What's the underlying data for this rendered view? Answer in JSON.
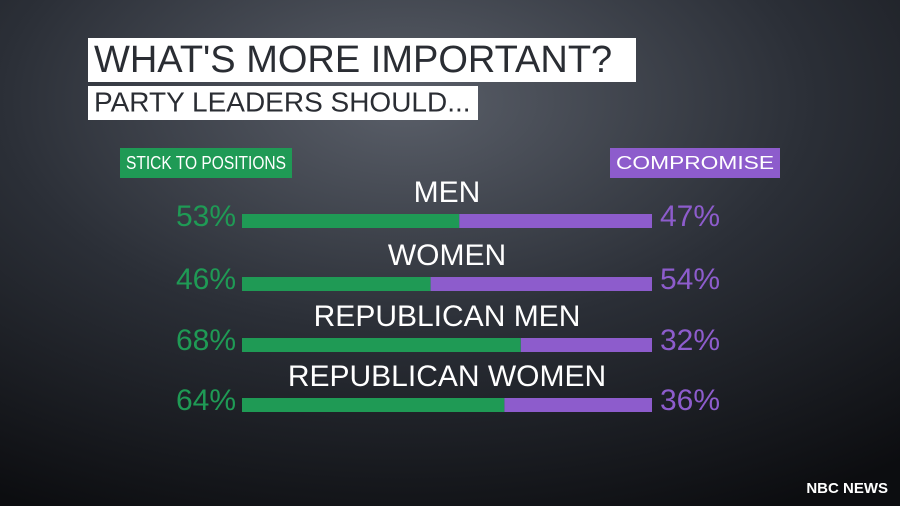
{
  "chart_data": {
    "type": "bar",
    "orientation": "horizontal",
    "stacked": true,
    "title": "WHAT'S MORE IMPORTANT?",
    "subtitle": "PARTY LEADERS SHOULD...",
    "categories": [
      "MEN",
      "WOMEN",
      "REPUBLICAN MEN",
      "REPUBLICAN WOMEN"
    ],
    "series": [
      {
        "name": "STICK TO POSITIONS",
        "color": "#1f9a55",
        "values": [
          53,
          46,
          68,
          64
        ],
        "value_labels": [
          "53%",
          "46%",
          "68%",
          "64%"
        ]
      },
      {
        "name": "COMPROMISE",
        "color": "#8d5ccc",
        "values": [
          47,
          54,
          32,
          36
        ],
        "value_labels": [
          "47%",
          "54%",
          "32%",
          "36%"
        ]
      }
    ],
    "source": "NBC NEWS"
  }
}
